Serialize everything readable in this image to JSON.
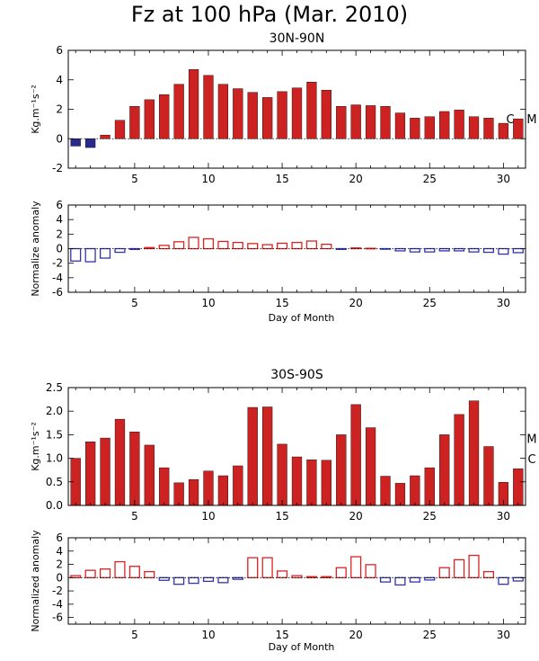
{
  "title": "Fz at 100 hPa (Mar. 2010)",
  "colors": {
    "positive": "#cc2222",
    "negative": "#2a2a8c",
    "anomaly_positive": "#dd2222",
    "anomaly_negative": "#3333aa",
    "axis": "#000000"
  },
  "chart_data": [
    {
      "type": "bar",
      "panel": "north-flux",
      "title": "30N-90N",
      "xlabel": "",
      "ylabel": "Kg.m⁻¹s⁻²",
      "xlim": [
        1,
        31
      ],
      "ylim": [
        -2,
        6
      ],
      "xticks": [
        5,
        10,
        15,
        20,
        25,
        30
      ],
      "yticks": [
        -2,
        0,
        2,
        4,
        6
      ],
      "filled": true,
      "x": [
        1,
        2,
        3,
        4,
        5,
        6,
        7,
        8,
        9,
        10,
        11,
        12,
        13,
        14,
        15,
        16,
        17,
        18,
        19,
        20,
        21,
        22,
        23,
        24,
        25,
        26,
        27,
        28,
        29,
        30,
        31
      ],
      "values": [
        -0.5,
        -0.6,
        0.25,
        1.25,
        2.2,
        2.65,
        3.0,
        3.7,
        4.7,
        4.3,
        3.7,
        3.4,
        3.15,
        2.8,
        3.2,
        3.45,
        3.85,
        3.3,
        2.2,
        2.3,
        2.25,
        2.2,
        1.75,
        1.4,
        1.5,
        1.85,
        1.95,
        1.5,
        1.4,
        1.05,
        1.35
      ],
      "annotations": [
        "C",
        "M"
      ]
    },
    {
      "type": "bar",
      "panel": "north-anomaly",
      "title": "",
      "xlabel": "Day of Month",
      "ylabel": "Normalize anomaly",
      "xlim": [
        1,
        31
      ],
      "ylim": [
        -6,
        6
      ],
      "xticks": [
        5,
        10,
        15,
        20,
        25,
        30
      ],
      "yticks": [
        -6,
        -4,
        -2,
        0,
        2,
        4,
        6
      ],
      "filled": false,
      "x": [
        1,
        2,
        3,
        4,
        5,
        6,
        7,
        8,
        9,
        10,
        11,
        12,
        13,
        14,
        15,
        16,
        17,
        18,
        19,
        20,
        21,
        22,
        23,
        24,
        25,
        26,
        27,
        28,
        29,
        30,
        31
      ],
      "values": [
        -1.7,
        -1.8,
        -1.3,
        -0.5,
        -0.1,
        0.15,
        0.45,
        0.95,
        1.55,
        1.35,
        1.0,
        0.85,
        0.7,
        0.55,
        0.75,
        0.85,
        1.05,
        0.6,
        -0.1,
        0.1,
        0.05,
        -0.05,
        -0.3,
        -0.45,
        -0.45,
        -0.3,
        -0.3,
        -0.45,
        -0.5,
        -0.75,
        -0.55
      ],
      "annotations": []
    },
    {
      "type": "bar",
      "panel": "south-flux",
      "title": "30S-90S",
      "xlabel": "",
      "ylabel": "Kg.m⁻¹s⁻²",
      "xlim": [
        1,
        31
      ],
      "ylim": [
        0,
        2.5
      ],
      "xticks": [
        5,
        10,
        15,
        20,
        25,
        30
      ],
      "yticks": [
        0.0,
        0.5,
        1.0,
        1.5,
        2.0,
        2.5
      ],
      "yticklabels": [
        "0.0",
        "0.5",
        "1.0",
        "1.5",
        "2.0",
        "2.5"
      ],
      "filled": true,
      "x": [
        1,
        2,
        3,
        4,
        5,
        6,
        7,
        8,
        9,
        10,
        11,
        12,
        13,
        14,
        15,
        16,
        17,
        18,
        19,
        20,
        21,
        22,
        23,
        24,
        25,
        26,
        27,
        28,
        29,
        30,
        31
      ],
      "values": [
        1.0,
        1.35,
        1.43,
        1.83,
        1.56,
        1.28,
        0.8,
        0.48,
        0.55,
        0.73,
        0.63,
        0.84,
        2.08,
        2.09,
        1.3,
        1.03,
        0.97,
        0.96,
        1.5,
        2.14,
        1.65,
        0.62,
        0.47,
        0.63,
        0.8,
        1.5,
        1.93,
        2.22,
        1.25,
        0.49,
        0.78
      ],
      "annotations": [
        "M",
        "C"
      ]
    },
    {
      "type": "bar",
      "panel": "south-anomaly",
      "title": "",
      "xlabel": "Day of Month",
      "ylabel": "Normalized anomaly",
      "xlim": [
        1,
        31
      ],
      "ylim": [
        -7,
        6
      ],
      "xticks": [
        5,
        10,
        15,
        20,
        25,
        30
      ],
      "yticks": [
        -6,
        -4,
        -2,
        0,
        2,
        4,
        6
      ],
      "filled": false,
      "x": [
        1,
        2,
        3,
        4,
        5,
        6,
        7,
        8,
        9,
        10,
        11,
        12,
        13,
        14,
        15,
        16,
        17,
        18,
        19,
        20,
        21,
        22,
        23,
        24,
        25,
        26,
        27,
        28,
        29,
        30,
        31
      ],
      "values": [
        0.3,
        1.1,
        1.3,
        2.4,
        1.7,
        0.9,
        -0.4,
        -1.0,
        -0.85,
        -0.55,
        -0.75,
        -0.25,
        3.0,
        3.0,
        1.0,
        0.3,
        0.15,
        0.15,
        1.5,
        3.15,
        1.95,
        -0.65,
        -1.1,
        -0.65,
        -0.35,
        1.5,
        2.7,
        3.35,
        0.9,
        -1.0,
        -0.5
      ],
      "annotations": []
    }
  ]
}
